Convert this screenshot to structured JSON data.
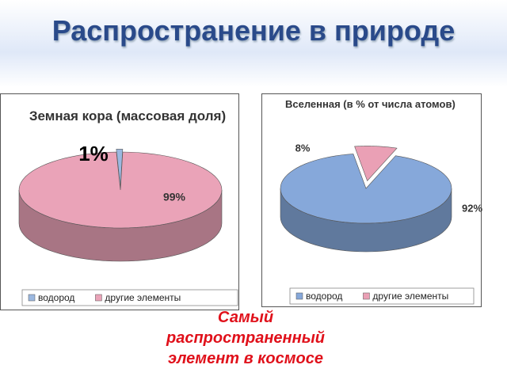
{
  "slide": {
    "title": "Распространение  в  природе",
    "caption": [
      "Самый",
      "распространенный",
      "элемент в космосе"
    ]
  },
  "chart_data": [
    {
      "type": "pie3d",
      "title": "Земная кора (массовая доля)",
      "categories": [
        "водород",
        "другие элементы"
      ],
      "values": [
        1,
        99
      ],
      "value_labels": [
        "1%",
        "99%"
      ],
      "colors": [
        "#9bb8e0",
        "#eaa3b8"
      ]
    },
    {
      "type": "pie3d",
      "title": "Вселенная (в % от числа атомов)",
      "categories": [
        "водород",
        "другие элементы"
      ],
      "values": [
        92,
        8
      ],
      "value_labels": [
        "92%",
        "8%"
      ],
      "colors": [
        "#86a8da",
        "#eaa0b5"
      ]
    }
  ]
}
